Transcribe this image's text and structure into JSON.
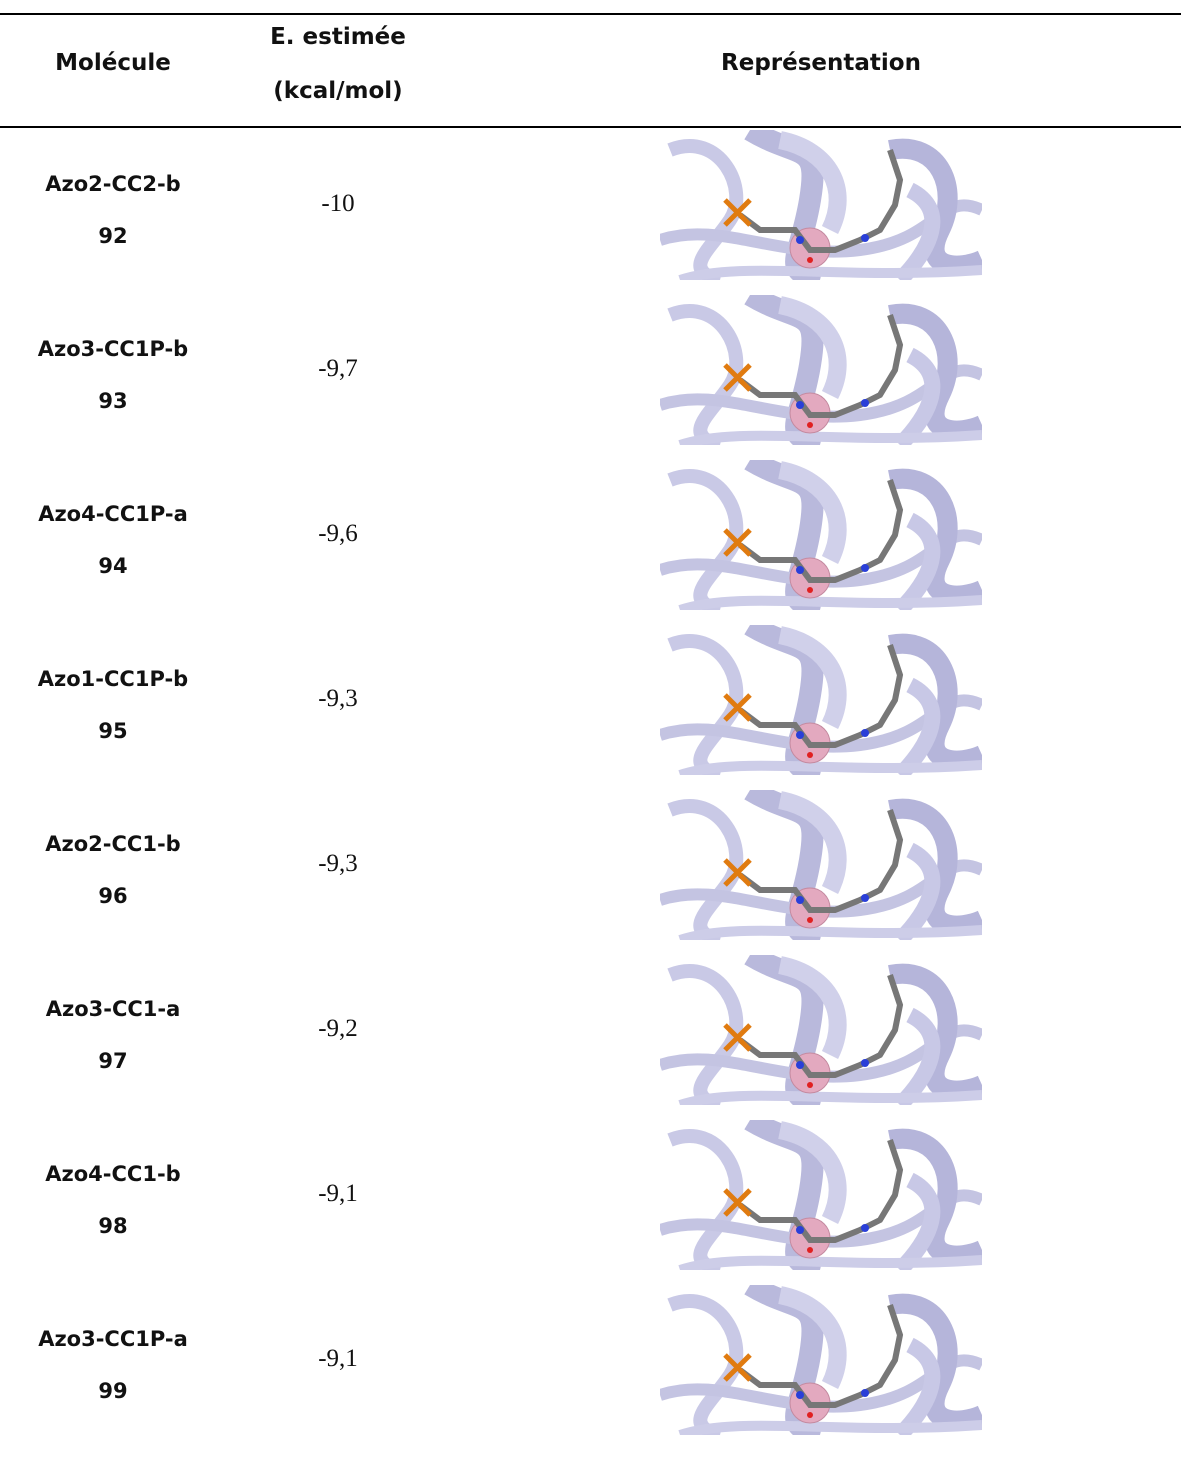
{
  "header": {
    "molecule": "Molécule",
    "energy_line1": "E. estimée",
    "energy_line2": "(kcal/mol)",
    "representation": "Représentation"
  },
  "table": {
    "rows": [
      {
        "name": "Azo2-CC2-b",
        "number": "92",
        "energy": "-10"
      },
      {
        "name": "Azo3-CC1P-b",
        "number": "93",
        "energy": "-9,7"
      },
      {
        "name": "Azo4-CC1P-a",
        "number": "94",
        "energy": "-9,6"
      },
      {
        "name": "Azo1-CC1P-b",
        "number": "95",
        "energy": "-9,3"
      },
      {
        "name": "Azo2-CC1-b",
        "number": "96",
        "energy": "-9,3"
      },
      {
        "name": "Azo3-CC1-a",
        "number": "97",
        "energy": "-9,2"
      },
      {
        "name": "Azo4-CC1-b",
        "number": "98",
        "energy": "-9,1"
      },
      {
        "name": "Azo3-CC1P-a",
        "number": "99",
        "energy": "-9,1"
      }
    ]
  }
}
